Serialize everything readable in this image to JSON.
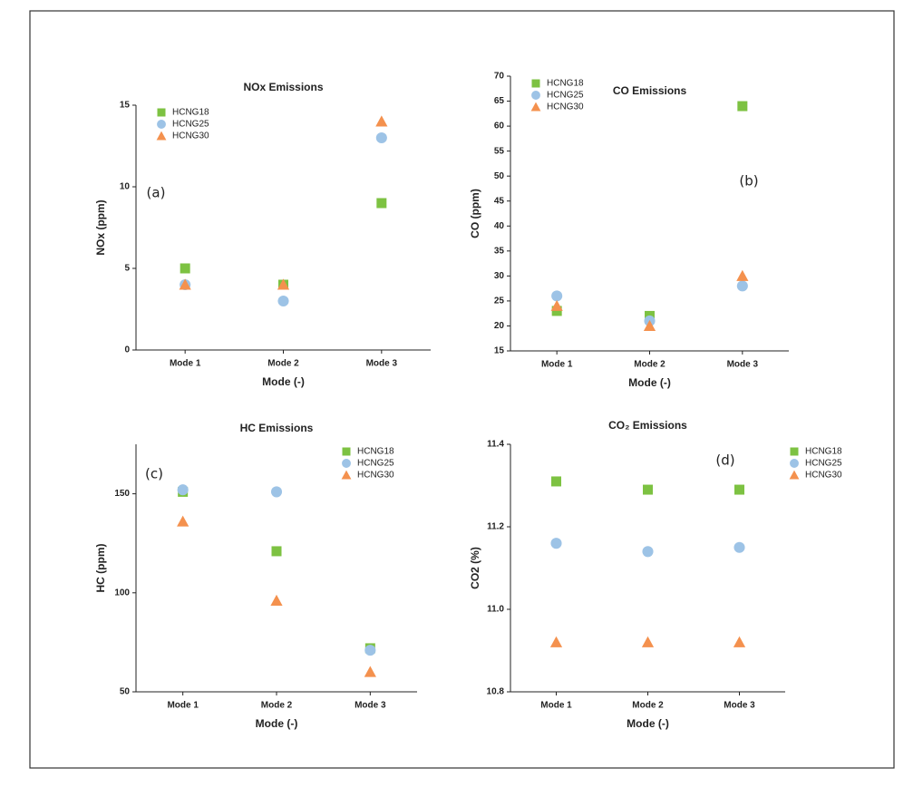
{
  "chart_data": [
    {
      "type": "scatter",
      "title": "NOx Emissions",
      "ylabel": "NOx (ppm)",
      "xlabel": "Mode (-)",
      "annotation": "(a)",
      "categories": [
        "Mode 1",
        "Mode 2",
        "Mode 3"
      ],
      "ylim": [
        0,
        15
      ],
      "yticks": [
        0,
        5,
        10,
        15
      ],
      "legend": "upper left",
      "series": [
        {
          "name": "HCNG18",
          "color": "#7dc242",
          "marker": "square",
          "values": [
            5,
            4,
            9
          ]
        },
        {
          "name": "HCNG25",
          "color": "#9dc3e6",
          "marker": "circle",
          "values": [
            4,
            3,
            13
          ]
        },
        {
          "name": "HCNG30",
          "color": "#f4914e",
          "marker": "triangle",
          "values": [
            4,
            4,
            14
          ]
        }
      ]
    },
    {
      "type": "scatter",
      "title": "CO Emissions",
      "ylabel": "CO (ppm)",
      "xlabel": "Mode (-)",
      "annotation": "(b)",
      "categories": [
        "Mode 1",
        "Mode 2",
        "Mode 3"
      ],
      "ylim": [
        15,
        70
      ],
      "yticks": [
        15,
        20,
        25,
        30,
        35,
        40,
        45,
        50,
        55,
        60,
        65,
        70
      ],
      "legend": "upper left",
      "series": [
        {
          "name": "HCNG18",
          "color": "#7dc242",
          "marker": "square",
          "values": [
            23,
            22,
            64
          ]
        },
        {
          "name": "HCNG25",
          "color": "#9dc3e6",
          "marker": "circle",
          "values": [
            26,
            21,
            28
          ]
        },
        {
          "name": "HCNG30",
          "color": "#f4914e",
          "marker": "triangle",
          "values": [
            24,
            20,
            30
          ]
        }
      ]
    },
    {
      "type": "scatter",
      "title": "HC Emissions",
      "ylabel": "HC (ppm)",
      "xlabel": "Mode (-)",
      "annotation": "(c)",
      "categories": [
        "Mode 1",
        "Mode 2",
        "Mode 3"
      ],
      "ylim": [
        50,
        175
      ],
      "yticks": [
        50,
        100,
        150
      ],
      "legend": "upper right",
      "series": [
        {
          "name": "HCNG18",
          "color": "#7dc242",
          "marker": "square",
          "values": [
            151,
            121,
            72
          ]
        },
        {
          "name": "HCNG25",
          "color": "#9dc3e6",
          "marker": "circle",
          "values": [
            152,
            151,
            71
          ]
        },
        {
          "name": "HCNG30",
          "color": "#f4914e",
          "marker": "triangle",
          "values": [
            136,
            96,
            60
          ]
        }
      ]
    },
    {
      "type": "scatter",
      "title": "CO₂ Emissions",
      "ylabel": "CO2 (%)",
      "xlabel": "Mode (-)",
      "annotation": "(d)",
      "categories": [
        "Mode 1",
        "Mode 2",
        "Mode 3"
      ],
      "ylim": [
        10.8,
        11.4
      ],
      "yticks": [
        10.8,
        {
          "value": 11,
          "label": "11.0"
        },
        11.2,
        11.4
      ],
      "legend": "outside right",
      "series": [
        {
          "name": "HCNG18",
          "color": "#7dc242",
          "marker": "square",
          "values": [
            11.31,
            11.29,
            11.29
          ]
        },
        {
          "name": "HCNG25",
          "color": "#9dc3e6",
          "marker": "circle",
          "values": [
            11.16,
            11.14,
            11.15
          ]
        },
        {
          "name": "HCNG30",
          "color": "#f4914e",
          "marker": "triangle",
          "values": [
            10.92,
            10.92,
            10.92
          ]
        }
      ]
    }
  ]
}
